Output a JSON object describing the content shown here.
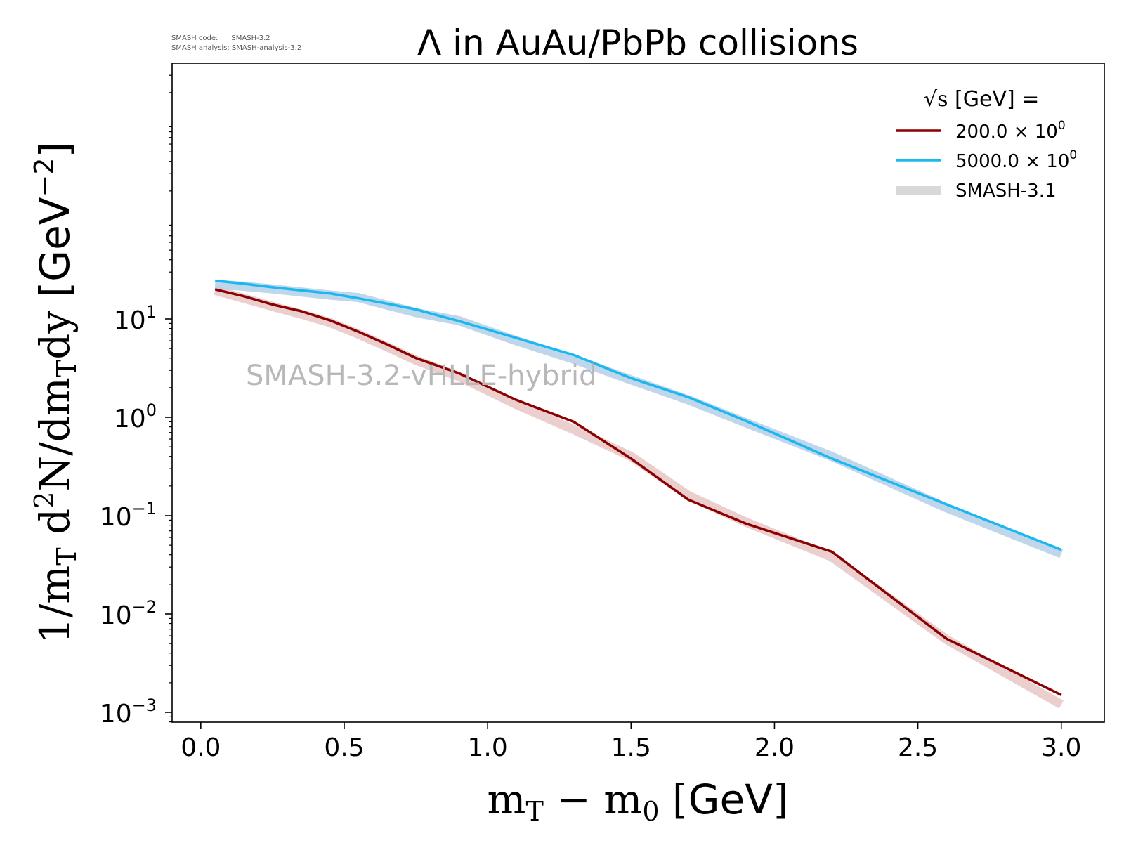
{
  "chart_data": {
    "type": "line",
    "title": "Λ in AuAu/PbPb collisions",
    "xlabel": {
      "main": "m",
      "sub1": "T",
      "minus": " − m",
      "sub2": "0",
      "unit": " [GeV]"
    },
    "ylabel": {
      "p1": "1/m",
      "s1": "T",
      "p2": " d",
      "sup": "2",
      "p3": "N/dm",
      "s2": "T",
      "p4": "dy",
      "unit": " [GeV",
      "unit_sup": "−2",
      "unit_end": "]"
    },
    "xlim": [
      -0.1,
      3.15
    ],
    "ylim_log10": [
      -3.1,
      3.6
    ],
    "yscale": "log",
    "x_ticks": [
      {
        "value": 0.0,
        "label": "0.0"
      },
      {
        "value": 0.5,
        "label": "0.5"
      },
      {
        "value": 1.0,
        "label": "1.0"
      },
      {
        "value": 1.5,
        "label": "1.5"
      },
      {
        "value": 2.0,
        "label": "2.0"
      },
      {
        "value": 2.5,
        "label": "2.5"
      },
      {
        "value": 3.0,
        "label": "3.0"
      }
    ],
    "y_ticks": [
      {
        "exp": 1,
        "base": "10",
        "sup": "1"
      },
      {
        "exp": 0,
        "base": "10",
        "sup": "0"
      },
      {
        "exp": -1,
        "base": "10",
        "sup": "−1"
      },
      {
        "exp": -2,
        "base": "10",
        "sup": "−2"
      },
      {
        "exp": -3,
        "base": "10",
        "sup": "−3"
      }
    ],
    "meta_lines": [
      "SMASH code:      SMASH-3.2",
      "SMASH analysis: SMASH-analysis-3.2"
    ],
    "watermark": "SMASH-3.2-vHLLE-hybrid",
    "legend": {
      "position": "top-right",
      "title_symbol": "√s",
      "title_text": " [GeV] =",
      "entries": [
        {
          "label": "200.0 × 10",
          "sup": "0",
          "color": "#8b0000",
          "kind": "line"
        },
        {
          "label": "5000.0 × 10",
          "sup": "0",
          "color": "#1ab8f0",
          "kind": "line"
        },
        {
          "label": "SMASH-3.1",
          "color": "#d8d8d8",
          "kind": "band"
        }
      ]
    },
    "series": [
      {
        "color": "#8b0000",
        "x": [
          0.05,
          0.15,
          0.25,
          0.35,
          0.45,
          0.55,
          0.65,
          0.75,
          0.9,
          1.1,
          1.3,
          1.5,
          1.7,
          1.9,
          2.2,
          2.6,
          3.0
        ],
        "y": [
          20,
          17,
          14,
          12,
          9.7,
          7.4,
          5.5,
          4.0,
          2.8,
          1.5,
          0.9,
          0.38,
          0.145,
          0.083,
          0.043,
          0.0056,
          0.0015
        ]
      },
      {
        "color": "#1ab8f0",
        "x": [
          0.05,
          0.15,
          0.25,
          0.35,
          0.45,
          0.55,
          0.65,
          0.75,
          0.9,
          1.1,
          1.3,
          1.5,
          1.7,
          1.9,
          2.2,
          2.6,
          3.0
        ],
        "y": [
          24.5,
          22.8,
          21.0,
          19.5,
          18.2,
          16.2,
          14.3,
          12.5,
          9.5,
          6.4,
          4.3,
          2.5,
          1.6,
          0.92,
          0.38,
          0.13,
          0.045
        ]
      }
    ],
    "reference_bands": [
      {
        "name": "SMASH-3.1",
        "color": "#e8c6c6",
        "x": [
          0.05,
          0.15,
          0.25,
          0.35,
          0.45,
          0.55,
          0.65,
          0.75,
          0.9,
          1.1,
          1.3,
          1.5,
          1.7,
          1.9,
          2.2,
          2.6,
          3.0
        ],
        "y": [
          19.5,
          16.2,
          13.4,
          11.2,
          9.2,
          7.0,
          5.2,
          3.8,
          2.6,
          1.35,
          0.75,
          0.4,
          0.16,
          0.086,
          0.038,
          0.0055,
          0.0012
        ]
      },
      {
        "name": "SMASH-3.1",
        "color": "#b4cfe8",
        "x": [
          0.05,
          0.15,
          0.25,
          0.35,
          0.45,
          0.55,
          0.65,
          0.75,
          0.9,
          1.1,
          1.3,
          1.5,
          1.7,
          1.9,
          2.2,
          2.6,
          3.0
        ],
        "y": [
          22.5,
          21.5,
          20.2,
          18.8,
          17.5,
          16.5,
          13.8,
          11.6,
          9.6,
          6.0,
          3.9,
          2.4,
          1.5,
          0.88,
          0.4,
          0.12,
          0.041
        ]
      }
    ]
  }
}
